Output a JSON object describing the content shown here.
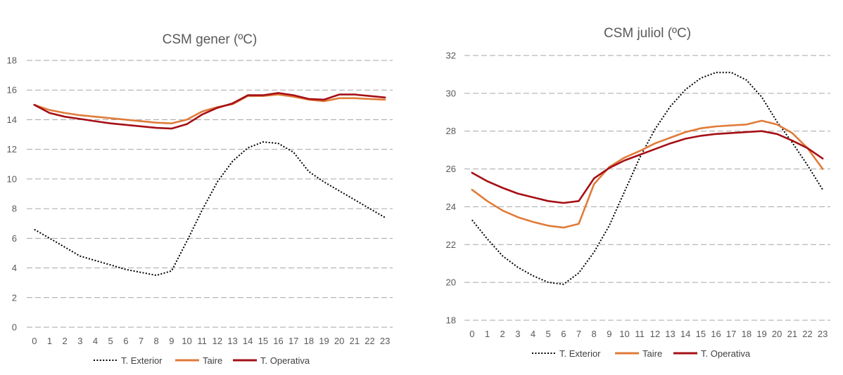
{
  "colors": {
    "exterior": "#000000",
    "taire": "#E07B39",
    "operativa": "#A50F15",
    "grid": "#A6A6A6",
    "text": "#595959"
  },
  "chart_data": [
    {
      "type": "line",
      "title": "CSM gener (ºC)",
      "xlabel": "",
      "ylabel": "",
      "x": [
        0,
        1,
        2,
        3,
        4,
        5,
        6,
        7,
        8,
        9,
        10,
        11,
        12,
        13,
        14,
        15,
        16,
        17,
        18,
        19,
        20,
        21,
        22,
        23
      ],
      "x_ticks": [
        "0",
        "1",
        "2",
        "3",
        "4",
        "5",
        "6",
        "7",
        "8",
        "9",
        "10",
        "11",
        "12",
        "13",
        "14",
        "15",
        "16",
        "17",
        "18",
        "19",
        "20",
        "21",
        "22",
        "23"
      ],
      "ylim": [
        0,
        18
      ],
      "y_ticks": [
        0,
        2,
        4,
        6,
        8,
        10,
        12,
        14,
        16,
        18
      ],
      "grid": true,
      "legend": "bottom",
      "series": [
        {
          "name": "T. Exterior",
          "style": "dotted",
          "color_key": "exterior",
          "values": [
            6.6,
            6.0,
            5.4,
            4.8,
            4.5,
            4.2,
            3.9,
            3.7,
            3.5,
            3.8,
            5.8,
            7.9,
            9.8,
            11.2,
            12.1,
            12.5,
            12.4,
            11.8,
            10.5,
            9.8,
            9.2,
            8.6,
            8.0,
            7.4
          ]
        },
        {
          "name": "Taire",
          "style": "solid",
          "color_key": "taire",
          "values": [
            15.0,
            14.65,
            14.45,
            14.3,
            14.2,
            14.1,
            14.0,
            13.9,
            13.8,
            13.75,
            14.0,
            14.55,
            14.85,
            15.05,
            15.6,
            15.6,
            15.7,
            15.55,
            15.35,
            15.25,
            15.45,
            15.45,
            15.4,
            15.35
          ]
        },
        {
          "name": "T. Operativa",
          "style": "solid",
          "color_key": "operativa",
          "values": [
            15.0,
            14.45,
            14.2,
            14.05,
            13.9,
            13.75,
            13.65,
            13.55,
            13.45,
            13.4,
            13.7,
            14.35,
            14.8,
            15.1,
            15.65,
            15.65,
            15.8,
            15.65,
            15.4,
            15.35,
            15.7,
            15.7,
            15.6,
            15.5
          ]
        }
      ]
    },
    {
      "type": "line",
      "title": "CSM juliol (ºC)",
      "xlabel": "",
      "ylabel": "",
      "x": [
        0,
        1,
        2,
        3,
        4,
        5,
        6,
        7,
        8,
        9,
        10,
        11,
        12,
        13,
        14,
        15,
        16,
        17,
        18,
        19,
        20,
        21,
        22,
        23
      ],
      "x_ticks": [
        "0",
        "1",
        "2",
        "3",
        "4",
        "5",
        "6",
        "7",
        "8",
        "9",
        "10",
        "11",
        "12",
        "13",
        "14",
        "15",
        "16",
        "17",
        "18",
        "19",
        "20",
        "21",
        "22",
        "23"
      ],
      "ylim": [
        18,
        32
      ],
      "y_ticks": [
        18,
        20,
        22,
        24,
        26,
        28,
        30,
        32
      ],
      "grid": true,
      "legend": "bottom",
      "series": [
        {
          "name": "T. Exterior",
          "style": "dotted",
          "color_key": "exterior",
          "values": [
            23.3,
            22.3,
            21.4,
            20.8,
            20.35,
            20.0,
            19.9,
            20.5,
            21.6,
            23.0,
            24.8,
            26.6,
            28.1,
            29.3,
            30.2,
            30.8,
            31.1,
            31.1,
            30.7,
            29.8,
            28.5,
            27.4,
            26.2,
            24.9
          ]
        },
        {
          "name": "Taire",
          "style": "solid",
          "color_key": "taire",
          "values": [
            24.9,
            24.3,
            23.8,
            23.45,
            23.2,
            23.0,
            22.9,
            23.1,
            25.2,
            26.1,
            26.6,
            26.95,
            27.35,
            27.65,
            27.95,
            28.15,
            28.25,
            28.3,
            28.35,
            28.55,
            28.35,
            27.9,
            27.1,
            26.0
          ]
        },
        {
          "name": "T. Operativa",
          "style": "solid",
          "color_key": "operativa",
          "values": [
            25.8,
            25.35,
            25.0,
            24.7,
            24.5,
            24.3,
            24.2,
            24.3,
            25.5,
            26.05,
            26.45,
            26.75,
            27.05,
            27.35,
            27.6,
            27.75,
            27.85,
            27.9,
            27.95,
            28.0,
            27.85,
            27.5,
            27.1,
            26.55
          ]
        }
      ]
    }
  ]
}
